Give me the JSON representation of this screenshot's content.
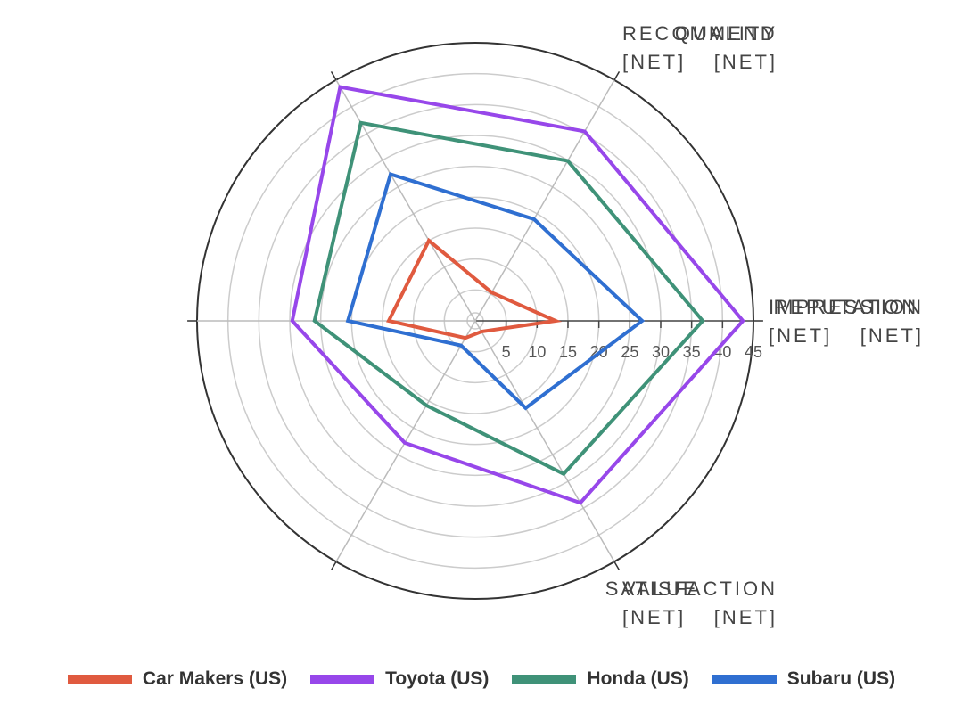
{
  "chart_data": {
    "type": "radar",
    "categories": [
      "IMPRESSION\n[NET]",
      "RECOMMEND\n[NET]",
      "QUALITY\n[NET]",
      "REPUTATION\n[NET]",
      "SATISFACTION\n[NET]",
      "VALUE\n[NET]"
    ],
    "series": [
      {
        "name": "Car Makers (US)",
        "color": "#e05a3f",
        "values": [
          13,
          5.3,
          15,
          14,
          3.2,
          2
        ]
      },
      {
        "name": "Toyota (US)",
        "color": "#9747ea",
        "values": [
          43.3,
          35.4,
          43.7,
          29.6,
          22.8,
          34
        ]
      },
      {
        "name": "Honda (US)",
        "color": "#3f9278",
        "values": [
          36.8,
          29.9,
          37,
          26,
          15.8,
          28.6
        ]
      },
      {
        "name": "Subaru (US)",
        "color": "#2f6fd1",
        "values": [
          27,
          19,
          27.4,
          20.6,
          4.6,
          16.3
        ]
      }
    ],
    "ylim": [
      0,
      45
    ],
    "yticks": [
      5,
      10,
      15,
      20,
      25,
      30,
      35,
      40,
      45
    ],
    "grid": true
  }
}
